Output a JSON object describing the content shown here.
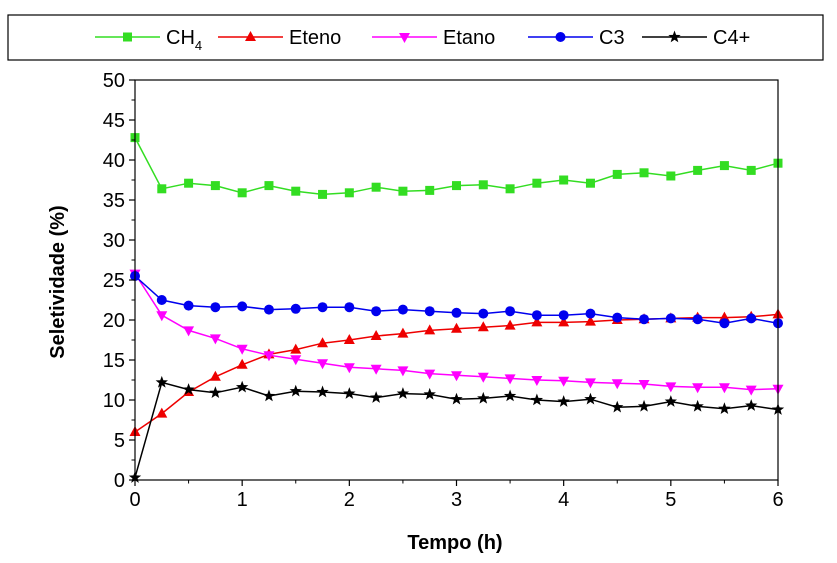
{
  "chart_data": {
    "type": "line",
    "xlabel": "Tempo (h)",
    "ylabel": "Seletividade (%)",
    "xlim": [
      0,
      6
    ],
    "ylim": [
      0,
      50
    ],
    "xticks": [
      0,
      1,
      2,
      3,
      4,
      5,
      6
    ],
    "yticks": [
      0,
      5,
      10,
      15,
      20,
      25,
      30,
      35,
      40,
      45,
      50
    ],
    "grid": false,
    "legend_position": "top",
    "x": [
      0,
      0.25,
      0.5,
      0.75,
      1,
      1.25,
      1.5,
      1.75,
      2,
      2.25,
      2.5,
      2.75,
      3,
      3.25,
      3.5,
      3.75,
      4,
      4.25,
      4.5,
      4.75,
      5,
      5.25,
      5.5,
      5.75,
      6
    ],
    "series": [
      {
        "name": "CH",
        "name_subscript": "4",
        "color": "#33dd22",
        "marker": "square",
        "values": [
          42.8,
          36.4,
          37.1,
          36.8,
          35.9,
          36.8,
          36.1,
          35.7,
          35.9,
          36.6,
          36.1,
          36.2,
          36.8,
          36.9,
          36.4,
          37.1,
          37.5,
          37.1,
          38.2,
          38.4,
          38.0,
          38.7,
          39.3,
          38.7,
          39.6
        ]
      },
      {
        "name": "Eteno",
        "color": "#ee0000",
        "marker": "triangle-up",
        "values": [
          6.0,
          8.3,
          11.0,
          12.9,
          14.4,
          15.7,
          16.3,
          17.1,
          17.5,
          18.0,
          18.3,
          18.7,
          18.9,
          19.1,
          19.3,
          19.7,
          19.7,
          19.8,
          20.0,
          20.1,
          20.2,
          20.3,
          20.3,
          20.4,
          20.7
        ]
      },
      {
        "name": "Etano",
        "color": "#ff00ff",
        "marker": "triangle-down",
        "values": [
          25.8,
          20.6,
          18.7,
          17.7,
          16.4,
          15.6,
          15.1,
          14.6,
          14.1,
          13.9,
          13.7,
          13.3,
          13.1,
          12.9,
          12.7,
          12.5,
          12.4,
          12.2,
          12.1,
          12.0,
          11.7,
          11.6,
          11.6,
          11.3,
          11.4
        ]
      },
      {
        "name": "C3",
        "color": "#0000ee",
        "marker": "circle",
        "values": [
          25.5,
          22.5,
          21.8,
          21.6,
          21.7,
          21.3,
          21.4,
          21.6,
          21.6,
          21.1,
          21.3,
          21.1,
          20.9,
          20.8,
          21.1,
          20.6,
          20.6,
          20.8,
          20.3,
          20.1,
          20.2,
          20.1,
          19.6,
          20.2,
          19.6
        ]
      },
      {
        "name": "C4+",
        "color": "#000000",
        "marker": "star",
        "values": [
          0.3,
          12.2,
          11.3,
          10.9,
          11.6,
          10.5,
          11.1,
          11.0,
          10.8,
          10.3,
          10.8,
          10.7,
          10.1,
          10.2,
          10.5,
          10.0,
          9.8,
          10.1,
          9.1,
          9.2,
          9.8,
          9.2,
          8.9,
          9.3,
          8.8
        ]
      }
    ]
  }
}
